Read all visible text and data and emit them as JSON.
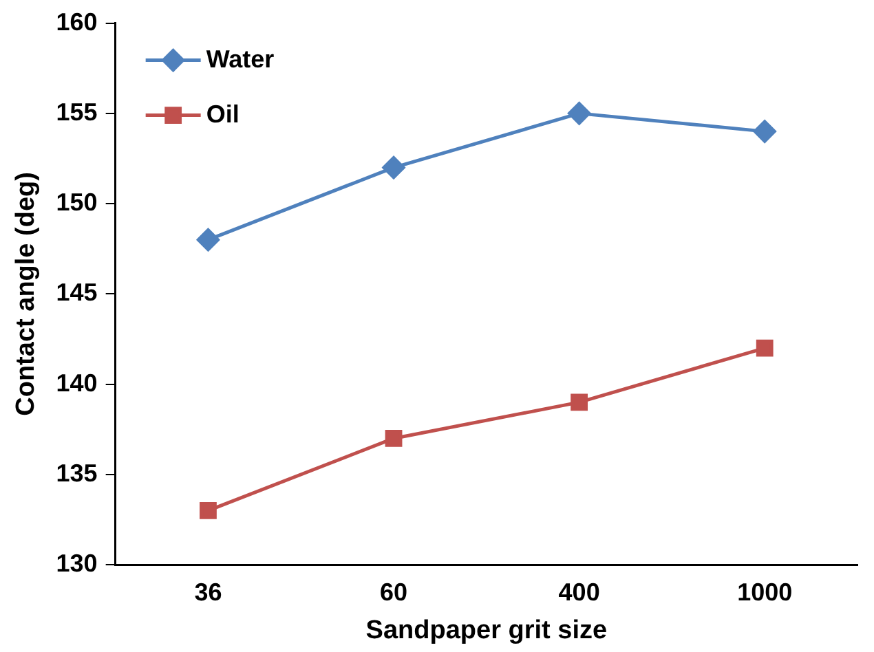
{
  "chart_data": {
    "type": "line",
    "xlabel": "Sandpaper grit size",
    "ylabel": "Contact angle (deg)",
    "categories": [
      "36",
      "60",
      "400",
      "1000"
    ],
    "series": [
      {
        "name": "Water",
        "color": "#4f81bd",
        "marker": "diamond",
        "values": [
          148,
          152,
          155,
          154
        ]
      },
      {
        "name": "Oil",
        "color": "#c0504d",
        "marker": "square",
        "values": [
          133,
          137,
          139,
          142
        ]
      }
    ],
    "ylim": [
      130,
      160
    ],
    "yticks": [
      130,
      135,
      140,
      145,
      150,
      155,
      160
    ],
    "grid": false,
    "legend": "top left",
    "line_style": "solid"
  }
}
